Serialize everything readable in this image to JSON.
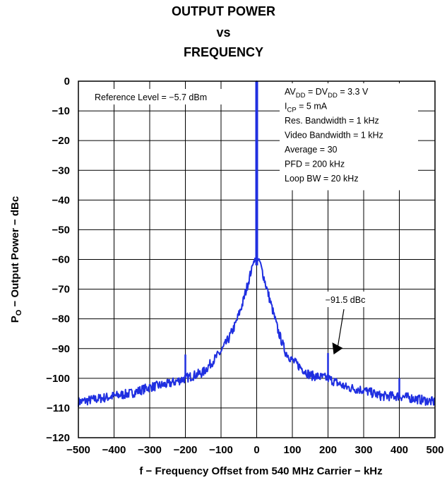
{
  "chart_data": {
    "type": "line",
    "title_lines": [
      "OUTPUT POWER",
      "vs",
      "FREQUENCY"
    ],
    "xlabel": "f − Frequency Offset from 540 MHz Carrier − kHz",
    "ylabel": {
      "prefix": "P",
      "sub": "O",
      "rest": " − Output Power − dBc"
    },
    "xlim": [
      -500,
      500
    ],
    "ylim": [
      -120,
      0
    ],
    "xticks": [
      -500,
      -400,
      -300,
      -200,
      -100,
      0,
      100,
      200,
      300,
      400,
      500
    ],
    "xtick_labels": [
      "−500",
      "−400",
      "−300",
      "−200",
      "−100",
      "0",
      "100",
      "200",
      "300",
      "400",
      "500"
    ],
    "yticks": [
      0,
      -10,
      -20,
      -30,
      -40,
      -50,
      -60,
      -70,
      -80,
      -90,
      -100,
      -110,
      -120
    ],
    "ytick_labels": [
      "0",
      "−10",
      "−20",
      "−30",
      "−40",
      "−50",
      "−60",
      "−70",
      "−80",
      "−90",
      "−100",
      "−110",
      "−120"
    ],
    "grid": true,
    "series_color": "#1f2fe0",
    "series": [
      {
        "x": [
          -500,
          -450,
          -400,
          -350,
          -300,
          -250,
          -200,
          -150,
          -100,
          -80,
          -60,
          -40,
          -20,
          -10,
          -5,
          -2,
          0,
          2,
          5,
          10,
          20,
          40,
          60,
          80,
          100,
          150,
          200,
          250,
          300,
          350,
          400,
          450,
          500
        ],
        "values": [
          -108,
          -107,
          -106,
          -105,
          -103,
          -102,
          -100,
          -98,
          -91,
          -87,
          -82,
          -75,
          -66,
          -61,
          -60,
          -60,
          0,
          -60,
          -60,
          -61,
          -66,
          -75,
          -84,
          -91,
          -94,
          -99,
          -100,
          -103,
          -104,
          -106,
          -106,
          -107,
          -108
        ]
      }
    ],
    "spurs": [
      {
        "x": -200,
        "value": -92
      },
      {
        "x": 200,
        "value": -91.5
      },
      {
        "x": 400,
        "value": -100
      }
    ],
    "reference_note": "Reference Level = −5.7 dBm",
    "conditions": [
      {
        "main": "AV",
        "sub": "DD",
        "mid": " =  DV",
        "sub2": "DD",
        "rest": " = 3.3 V"
      },
      {
        "main": "I",
        "sub": "CP",
        "rest": " = 5 mA"
      },
      {
        "main": "Res. Bandwidth = 1 kHz"
      },
      {
        "main": "Video Bandwidth = 1 kHz"
      },
      {
        "main": "Average = 30"
      },
      {
        "main": "PFD = 200 kHz"
      },
      {
        "main": "Loop BW = 20 kHz"
      }
    ],
    "annotation": {
      "text": "−91.5 dBc",
      "x": 200,
      "value": -91.5
    }
  }
}
